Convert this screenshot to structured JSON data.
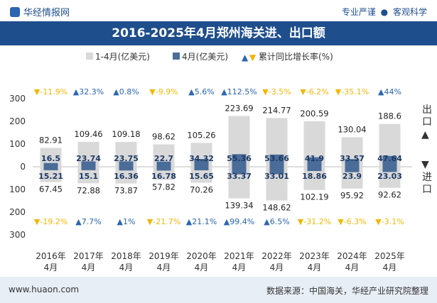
{
  "header": {
    "brand": "华经情报网",
    "tag1": "专业严谨",
    "tag2": "客观科学"
  },
  "title": "2016-2025年4月郑州海关进、出口额",
  "legend": {
    "cum": "1-4月(亿美元)",
    "month": "4月(亿美元)",
    "growth": "累计同比增长率(%)"
  },
  "side_labels": {
    "export": "出口",
    "import": "进口"
  },
  "footer": {
    "left": "www.huaon.com",
    "right": "数据来源：中国海关，华经产业研究院整理"
  },
  "colors": {
    "cum_bar": "#d9d9d9",
    "month_bar": "#4a6c98",
    "up": "#2b66b1",
    "down": "#f2b705"
  },
  "chart_data": {
    "type": "bar",
    "categories": [
      "2016年\n4月",
      "2017年\n4月",
      "2018年\n4月",
      "2019年\n4月",
      "2020年\n4月",
      "2021年\n4月",
      "2022年\n4月",
      "2023年\n4月",
      "2024年\n4月",
      "2025年\n4月"
    ],
    "export_cum": [
      82.91,
      109.46,
      109.18,
      98.62,
      105.26,
      223.69,
      214.77,
      200.59,
      130.04,
      188.6
    ],
    "export_month": [
      16.5,
      23.74,
      23.75,
      22.7,
      34.32,
      55.36,
      53.66,
      41.9,
      33.57,
      47.64
    ],
    "import_cum": [
      67.45,
      72.88,
      73.87,
      57.82,
      70.26,
      139.34,
      148.62,
      102.19,
      95.92,
      92.62
    ],
    "import_month": [
      15.21,
      15.1,
      16.36,
      16.78,
      15.65,
      33.37,
      33.01,
      18.86,
      23.9,
      23.03
    ],
    "export_growth": [
      "-11.9%",
      "32.3%",
      "0.8%",
      "-9.9%",
      "5.6%",
      "112.5%",
      "-3.5%",
      "-6.2%",
      "-35.1%",
      "44%"
    ],
    "import_growth": [
      "-19.2%",
      "7.7%",
      "1%",
      "-21.7%",
      "21.1%",
      "99.4%",
      "6.5%",
      "-31.2%",
      "-6.3%",
      "-3.1%"
    ],
    "y_ticks": [
      "300",
      "200",
      "100",
      "0",
      "100",
      "200",
      "300"
    ],
    "ylim": [
      -300,
      300
    ]
  }
}
